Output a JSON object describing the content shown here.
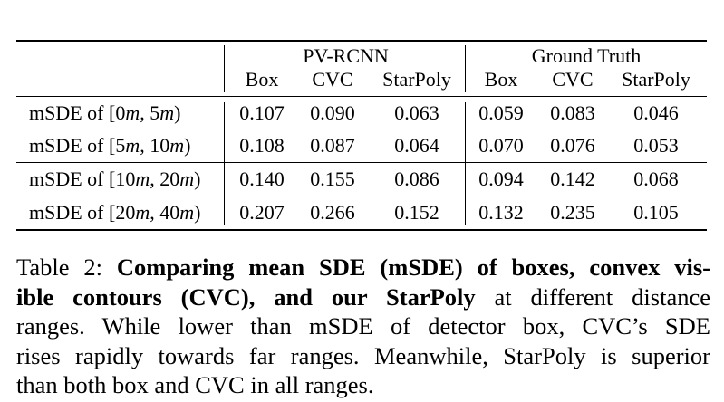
{
  "table": {
    "group_headers": [
      "PV-RCNN",
      "Ground Truth"
    ],
    "column_headers": [
      "Box",
      "CVC",
      "StarPoly",
      "Box",
      "CVC",
      "StarPoly"
    ],
    "rows": [
      {
        "label_prefix": "mSDE of [0",
        "unit1": "m",
        "label_mid": ", 5",
        "unit2": "m",
        "label_suffix": ")",
        "values": [
          "0.107",
          "0.090",
          "0.063",
          "0.059",
          "0.083",
          "0.046"
        ]
      },
      {
        "label_prefix": "mSDE of [5",
        "unit1": "m",
        "label_mid": ", 10",
        "unit2": "m",
        "label_suffix": ")",
        "values": [
          "0.108",
          "0.087",
          "0.064",
          "0.070",
          "0.076",
          "0.053"
        ]
      },
      {
        "label_prefix": "mSDE of [10",
        "unit1": "m",
        "label_mid": ", 20",
        "unit2": "m",
        "label_suffix": ")",
        "values": [
          "0.140",
          "0.155",
          "0.086",
          "0.094",
          "0.142",
          "0.068"
        ]
      },
      {
        "label_prefix": "mSDE of [20",
        "unit1": "m",
        "label_mid": ", 40",
        "unit2": "m",
        "label_suffix": ")",
        "values": [
          "0.207",
          "0.266",
          "0.152",
          "0.132",
          "0.235",
          "0.105"
        ]
      }
    ]
  },
  "caption": {
    "label": "Table 2:",
    "bold_line1": "Comparing mean SDE (mSDE) of boxes, convex vis-",
    "bold_line2": "ible contours (CVC), and our StarPoly",
    "line2_rest": "at different distance",
    "line3": "ranges.  While lower than mSDE of detector box, CVC’s SDE",
    "line4": "rises rapidly towards far ranges. Meanwhile, StarPoly is superior",
    "line5": "than both box and CVC in all ranges."
  }
}
